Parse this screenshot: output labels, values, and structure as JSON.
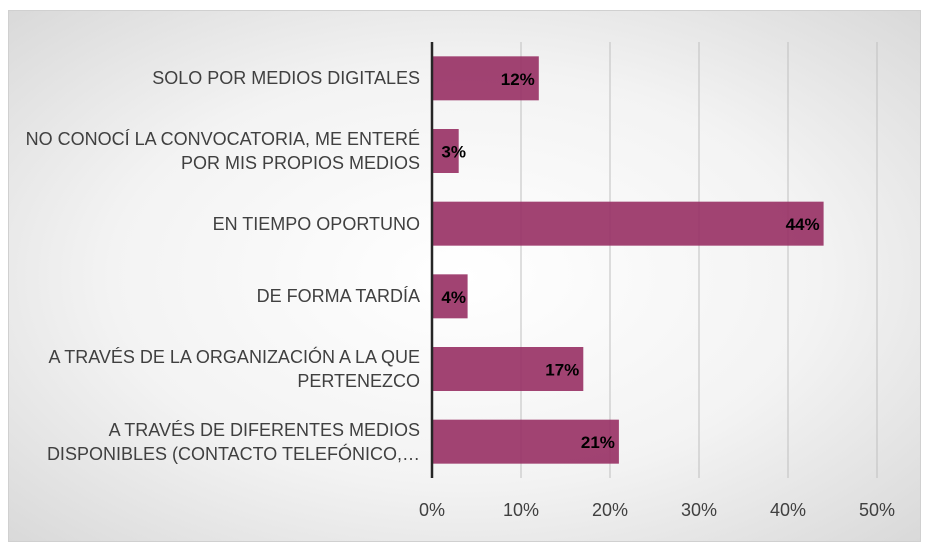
{
  "chart_data": {
    "type": "barh",
    "categories": [
      "SOLO POR MEDIOS DIGITALES",
      "NO CONOCÍ LA CONVOCATORIA, ME ENTERÉ POR MIS PROPIOS MEDIOS",
      "EN TIEMPO OPORTUNO",
      "DE FORMA TARDÍA",
      "A TRAVÉS DE LA ORGANIZACIÓN A LA QUE PERTENEZCO",
      "A TRAVÉS DE DIFERENTES MEDIOS DISPONIBLES (CONTACTO TELEFÓNICO,…"
    ],
    "values": [
      12,
      3,
      44,
      4,
      17,
      21
    ],
    "value_labels": [
      "12%",
      "3%",
      "44%",
      "4%",
      "17%",
      "21%"
    ],
    "color": "#993366",
    "xlim": [
      0,
      50
    ],
    "xticks": [
      {
        "value": 0,
        "label": "0%"
      },
      {
        "value": 10,
        "label": "10%"
      },
      {
        "value": 20,
        "label": "20%"
      },
      {
        "value": 30,
        "label": "30%"
      },
      {
        "value": 40,
        "label": "40%"
      },
      {
        "value": 50,
        "label": "50%"
      }
    ],
    "grid": true
  }
}
